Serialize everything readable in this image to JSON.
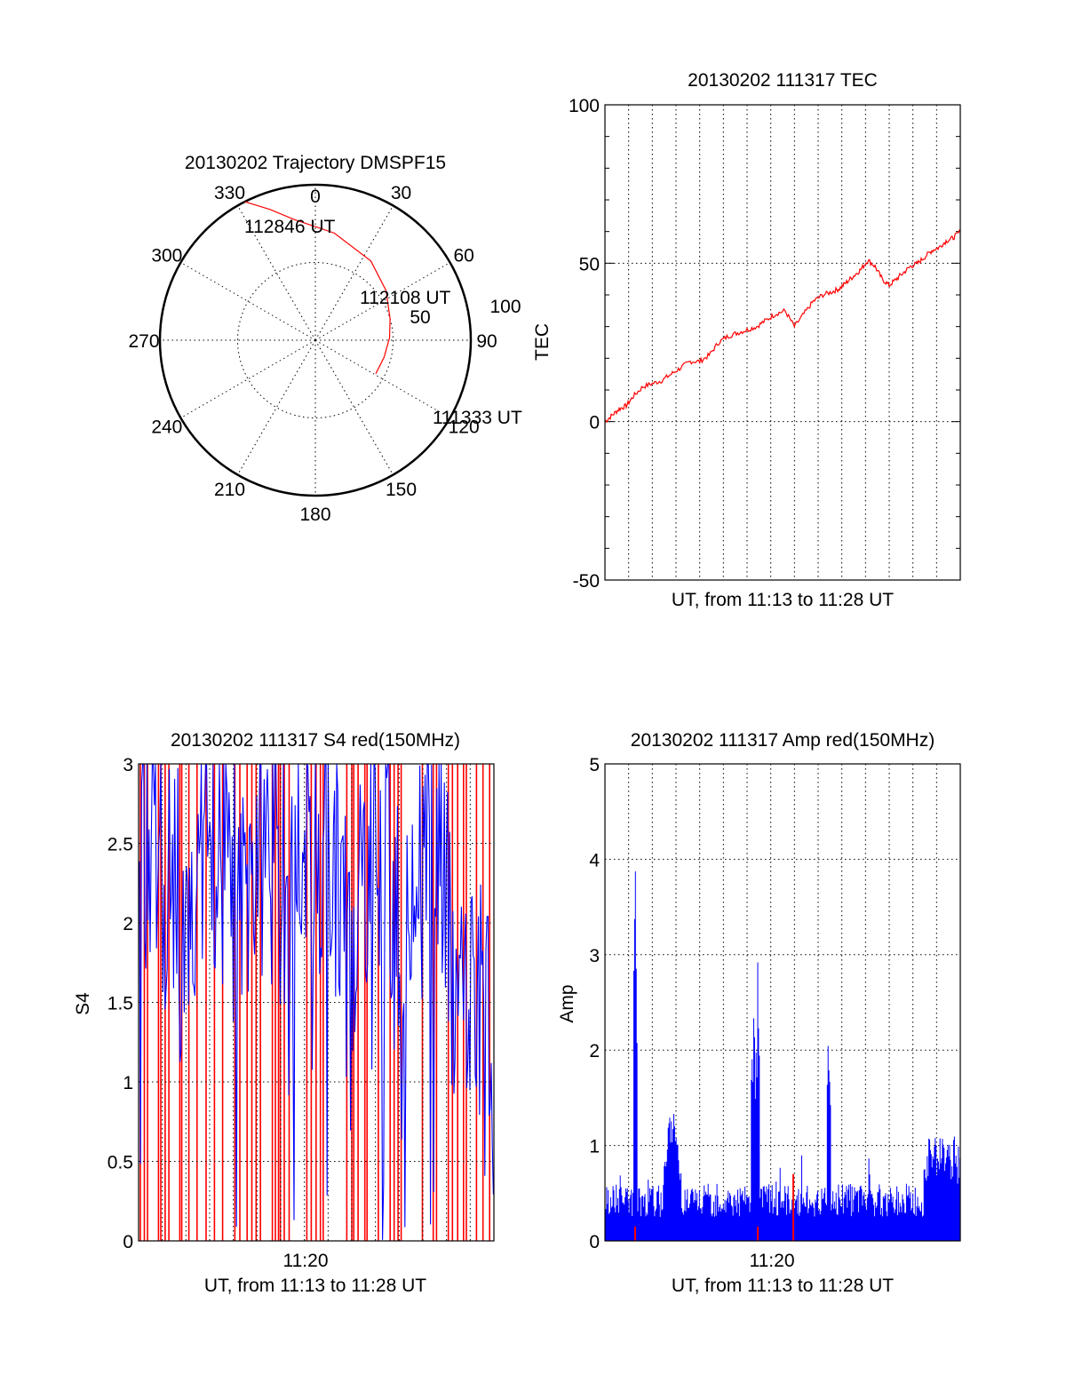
{
  "chart_data": [
    {
      "type": "polar",
      "title": "20130202 Trajectory DMSPF15",
      "angle_labels": [
        "0",
        "30",
        "60",
        "90",
        "120",
        "150",
        "180",
        "210",
        "240",
        "270",
        "300",
        "330"
      ],
      "radius_labels": [
        "50",
        "100"
      ],
      "rlim": [
        0,
        100
      ],
      "grid": true,
      "series": [
        {
          "color": "#ff0000",
          "points": [
            {
              "az": 333,
              "el": 0
            },
            {
              "az": 341,
              "el": 10
            },
            {
              "az": 350,
              "el": 19
            },
            {
              "az": 10,
              "el": 27
            },
            {
              "az": 35,
              "el": 34
            },
            {
              "az": 55,
              "el": 40
            },
            {
              "az": 74,
              "el": 45
            },
            {
              "az": 88,
              "el": 47
            },
            {
              "az": 104,
              "el": 49
            },
            {
              "az": 119,
              "el": 50
            }
          ]
        }
      ],
      "annotations": [
        "112846 UT",
        "112108 UT",
        "111333 UT"
      ]
    },
    {
      "type": "line",
      "title": "20130202 111317 TEC",
      "xlabel": "UT, from 11:13 to 11:28 UT",
      "ylabel": "TEC",
      "xlim": [
        0,
        15
      ],
      "ylim": [
        -50,
        100
      ],
      "yticks": [
        "-50",
        "0",
        "50",
        "100"
      ],
      "grid": true,
      "series": [
        {
          "color": "#ff0000",
          "x": [
            0,
            0.3,
            0.6,
            0.9,
            1.2,
            1.6,
            2.0,
            2.4,
            2.8,
            3.2,
            3.6,
            4.0,
            4.4,
            4.8,
            5.2,
            5.6,
            6.0,
            6.4,
            6.8,
            7.2,
            7.6,
            8.0,
            8.4,
            8.8,
            9.2,
            9.6,
            9.9,
            10.2,
            10.5,
            10.8,
            11.1,
            11.4,
            11.7,
            12.0,
            12.3,
            12.6,
            12.9,
            13.2,
            13.5,
            13.8,
            14.1,
            14.4,
            14.7,
            15.0
          ],
          "y": [
            0,
            2,
            4,
            5,
            8,
            11,
            12,
            13,
            15,
            17,
            19,
            19,
            21,
            25,
            27,
            28,
            29,
            30,
            32,
            34,
            35,
            30,
            34,
            38,
            40,
            41,
            42,
            44,
            46,
            48,
            51,
            49,
            45,
            43,
            45,
            47,
            49,
            50,
            52,
            54,
            55,
            57,
            58,
            60
          ]
        }
      ]
    },
    {
      "type": "line",
      "title": "20130202 111317 S4 red(150MHz)",
      "xlabel": "UT, from 11:13 to 11:28 UT",
      "ylabel": "S4",
      "xtick_label": "11:20",
      "ylim": [
        0,
        3
      ],
      "yticks": [
        "0",
        "0.5",
        "1",
        "1.5",
        "2",
        "2.5",
        "3"
      ],
      "grid": true,
      "series": [
        {
          "color": "#ff0000",
          "note": "red(150MHz)"
        },
        {
          "color": "#0000ff"
        }
      ]
    },
    {
      "type": "line",
      "title": "20130202 111317 Amp red(150MHz)",
      "xlabel": "UT, from 11:13 to 11:28 UT",
      "ylabel": "Amp",
      "xtick_label": "11:20",
      "ylim": [
        0,
        5
      ],
      "yticks": [
        "0",
        "1",
        "2",
        "3",
        "4",
        "5"
      ],
      "grid": true,
      "series": [
        {
          "color": "#0000ff"
        },
        {
          "color": "#ff0000"
        }
      ]
    }
  ],
  "colors": {
    "red": "#ff0000",
    "blue": "#0000ff"
  }
}
